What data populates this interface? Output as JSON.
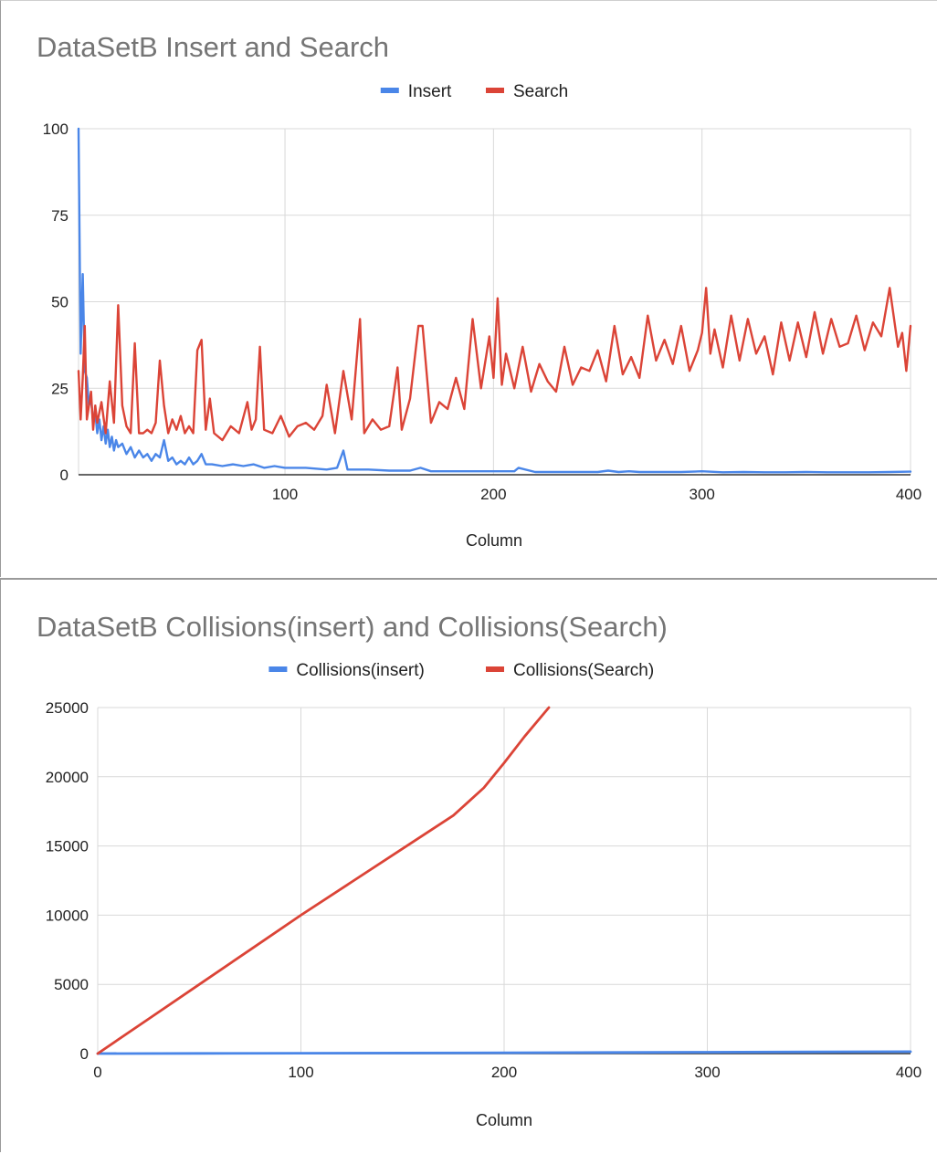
{
  "chart_data": [
    {
      "type": "line",
      "title": "DataSetB Insert and Search",
      "xlabel": "Column",
      "ylabel": "",
      "xlim": [
        1,
        400
      ],
      "ylim": [
        0,
        100
      ],
      "x_ticks": [
        100,
        200,
        300,
        400
      ],
      "y_ticks": [
        0,
        25,
        50,
        75,
        100
      ],
      "grid": true,
      "legend_position": "top",
      "series": [
        {
          "name": "Insert",
          "color": "#4a86e8",
          "x": [
            1,
            2,
            3,
            4,
            5,
            6,
            7,
            8,
            9,
            10,
            11,
            12,
            13,
            14,
            15,
            16,
            17,
            18,
            19,
            20,
            22,
            24,
            26,
            28,
            30,
            32,
            34,
            36,
            38,
            40,
            42,
            44,
            46,
            48,
            50,
            52,
            54,
            56,
            58,
            60,
            62,
            65,
            70,
            75,
            80,
            85,
            90,
            95,
            100,
            110,
            120,
            125,
            128,
            130,
            135,
            140,
            150,
            160,
            165,
            170,
            180,
            190,
            200,
            210,
            212,
            220,
            230,
            240,
            250,
            255,
            260,
            265,
            270,
            280,
            290,
            300,
            310,
            320,
            330,
            340,
            350,
            360,
            370,
            380,
            390,
            400
          ],
          "values": [
            100,
            35,
            58,
            30,
            28,
            20,
            22,
            15,
            18,
            12,
            16,
            10,
            14,
            9,
            13,
            8,
            11,
            7,
            10,
            8,
            9,
            6,
            8,
            5,
            7,
            5,
            6,
            4,
            6,
            5,
            10,
            4,
            5,
            3,
            4,
            3,
            5,
            3,
            4,
            6,
            3,
            3,
            2.5,
            3,
            2.5,
            3,
            2,
            2.5,
            2,
            2,
            1.5,
            2,
            7,
            1.5,
            1.5,
            1.5,
            1.2,
            1.2,
            2,
            1,
            1,
            1,
            1,
            1,
            2,
            0.8,
            0.8,
            0.8,
            0.8,
            1.2,
            0.8,
            1,
            0.8,
            0.8,
            0.8,
            1,
            0.7,
            0.8,
            0.7,
            0.7,
            0.8,
            0.7,
            0.7,
            0.7,
            0.8,
            0.9
          ]
        },
        {
          "name": "Search",
          "color": "#db4437",
          "x": [
            1,
            2,
            3,
            4,
            5,
            6,
            7,
            8,
            9,
            10,
            12,
            14,
            16,
            18,
            20,
            22,
            24,
            26,
            28,
            30,
            32,
            34,
            36,
            38,
            40,
            42,
            44,
            46,
            48,
            50,
            52,
            54,
            56,
            58,
            60,
            62,
            64,
            66,
            70,
            74,
            78,
            82,
            84,
            86,
            88,
            90,
            94,
            98,
            102,
            106,
            110,
            114,
            118,
            120,
            124,
            128,
            132,
            136,
            138,
            142,
            146,
            150,
            154,
            156,
            160,
            164,
            166,
            170,
            174,
            178,
            182,
            186,
            190,
            194,
            198,
            200,
            202,
            204,
            206,
            210,
            214,
            218,
            222,
            226,
            230,
            234,
            238,
            242,
            246,
            250,
            254,
            258,
            262,
            266,
            270,
            274,
            278,
            282,
            286,
            290,
            294,
            298,
            300,
            302,
            304,
            306,
            310,
            314,
            318,
            322,
            326,
            330,
            334,
            338,
            342,
            346,
            350,
            354,
            358,
            362,
            366,
            370,
            374,
            378,
            382,
            386,
            390,
            394,
            396,
            398,
            400
          ],
          "values": [
            30,
            16,
            28,
            43,
            16,
            20,
            24,
            13,
            20,
            15,
            21,
            12,
            27,
            15,
            49,
            20,
            14,
            12,
            38,
            12,
            12,
            13,
            12,
            15,
            33,
            20,
            12,
            16,
            13,
            17,
            12,
            14,
            12,
            36,
            39,
            13,
            22,
            12,
            10,
            14,
            12,
            21,
            13,
            16,
            37,
            13,
            12,
            17,
            11,
            14,
            15,
            13,
            17,
            26,
            12,
            30,
            16,
            45,
            12,
            16,
            13,
            14,
            31,
            13,
            22,
            43,
            43,
            15,
            21,
            19,
            28,
            19,
            45,
            25,
            40,
            28,
            51,
            26,
            35,
            25,
            37,
            24,
            32,
            27,
            24,
            37,
            26,
            31,
            30,
            36,
            27,
            43,
            29,
            34,
            28,
            46,
            33,
            39,
            32,
            43,
            30,
            36,
            41,
            54,
            35,
            42,
            31,
            46,
            33,
            45,
            35,
            40,
            29,
            44,
            33,
            44,
            34,
            47,
            35,
            45,
            37,
            38,
            46,
            36,
            44,
            40,
            54,
            37,
            41,
            30,
            43
          ]
        }
      ]
    },
    {
      "type": "line",
      "title": "DataSetB Collisions(insert) and Collisions(Search)",
      "xlabel": "Column",
      "ylabel": "",
      "xlim": [
        0,
        400
      ],
      "ylim": [
        0,
        25000
      ],
      "x_ticks": [
        0,
        100,
        200,
        300,
        400
      ],
      "y_ticks": [
        0,
        5000,
        10000,
        15000,
        20000,
        25000
      ],
      "grid": true,
      "legend_position": "top",
      "series": [
        {
          "name": "Collisions(insert)",
          "color": "#4a86e8",
          "x": [
            0,
            50,
            100,
            150,
            200,
            250,
            300,
            350,
            400
          ],
          "values": [
            0,
            10,
            25,
            40,
            60,
            80,
            100,
            120,
            140
          ]
        },
        {
          "name": "Collisions(Search)",
          "color": "#db4437",
          "x": [
            0,
            25,
            50,
            75,
            100,
            125,
            150,
            175,
            190,
            200,
            210,
            222
          ],
          "values": [
            0,
            2500,
            5000,
            7500,
            10000,
            12400,
            14800,
            17200,
            19200,
            21000,
            22900,
            25000
          ]
        }
      ]
    }
  ]
}
